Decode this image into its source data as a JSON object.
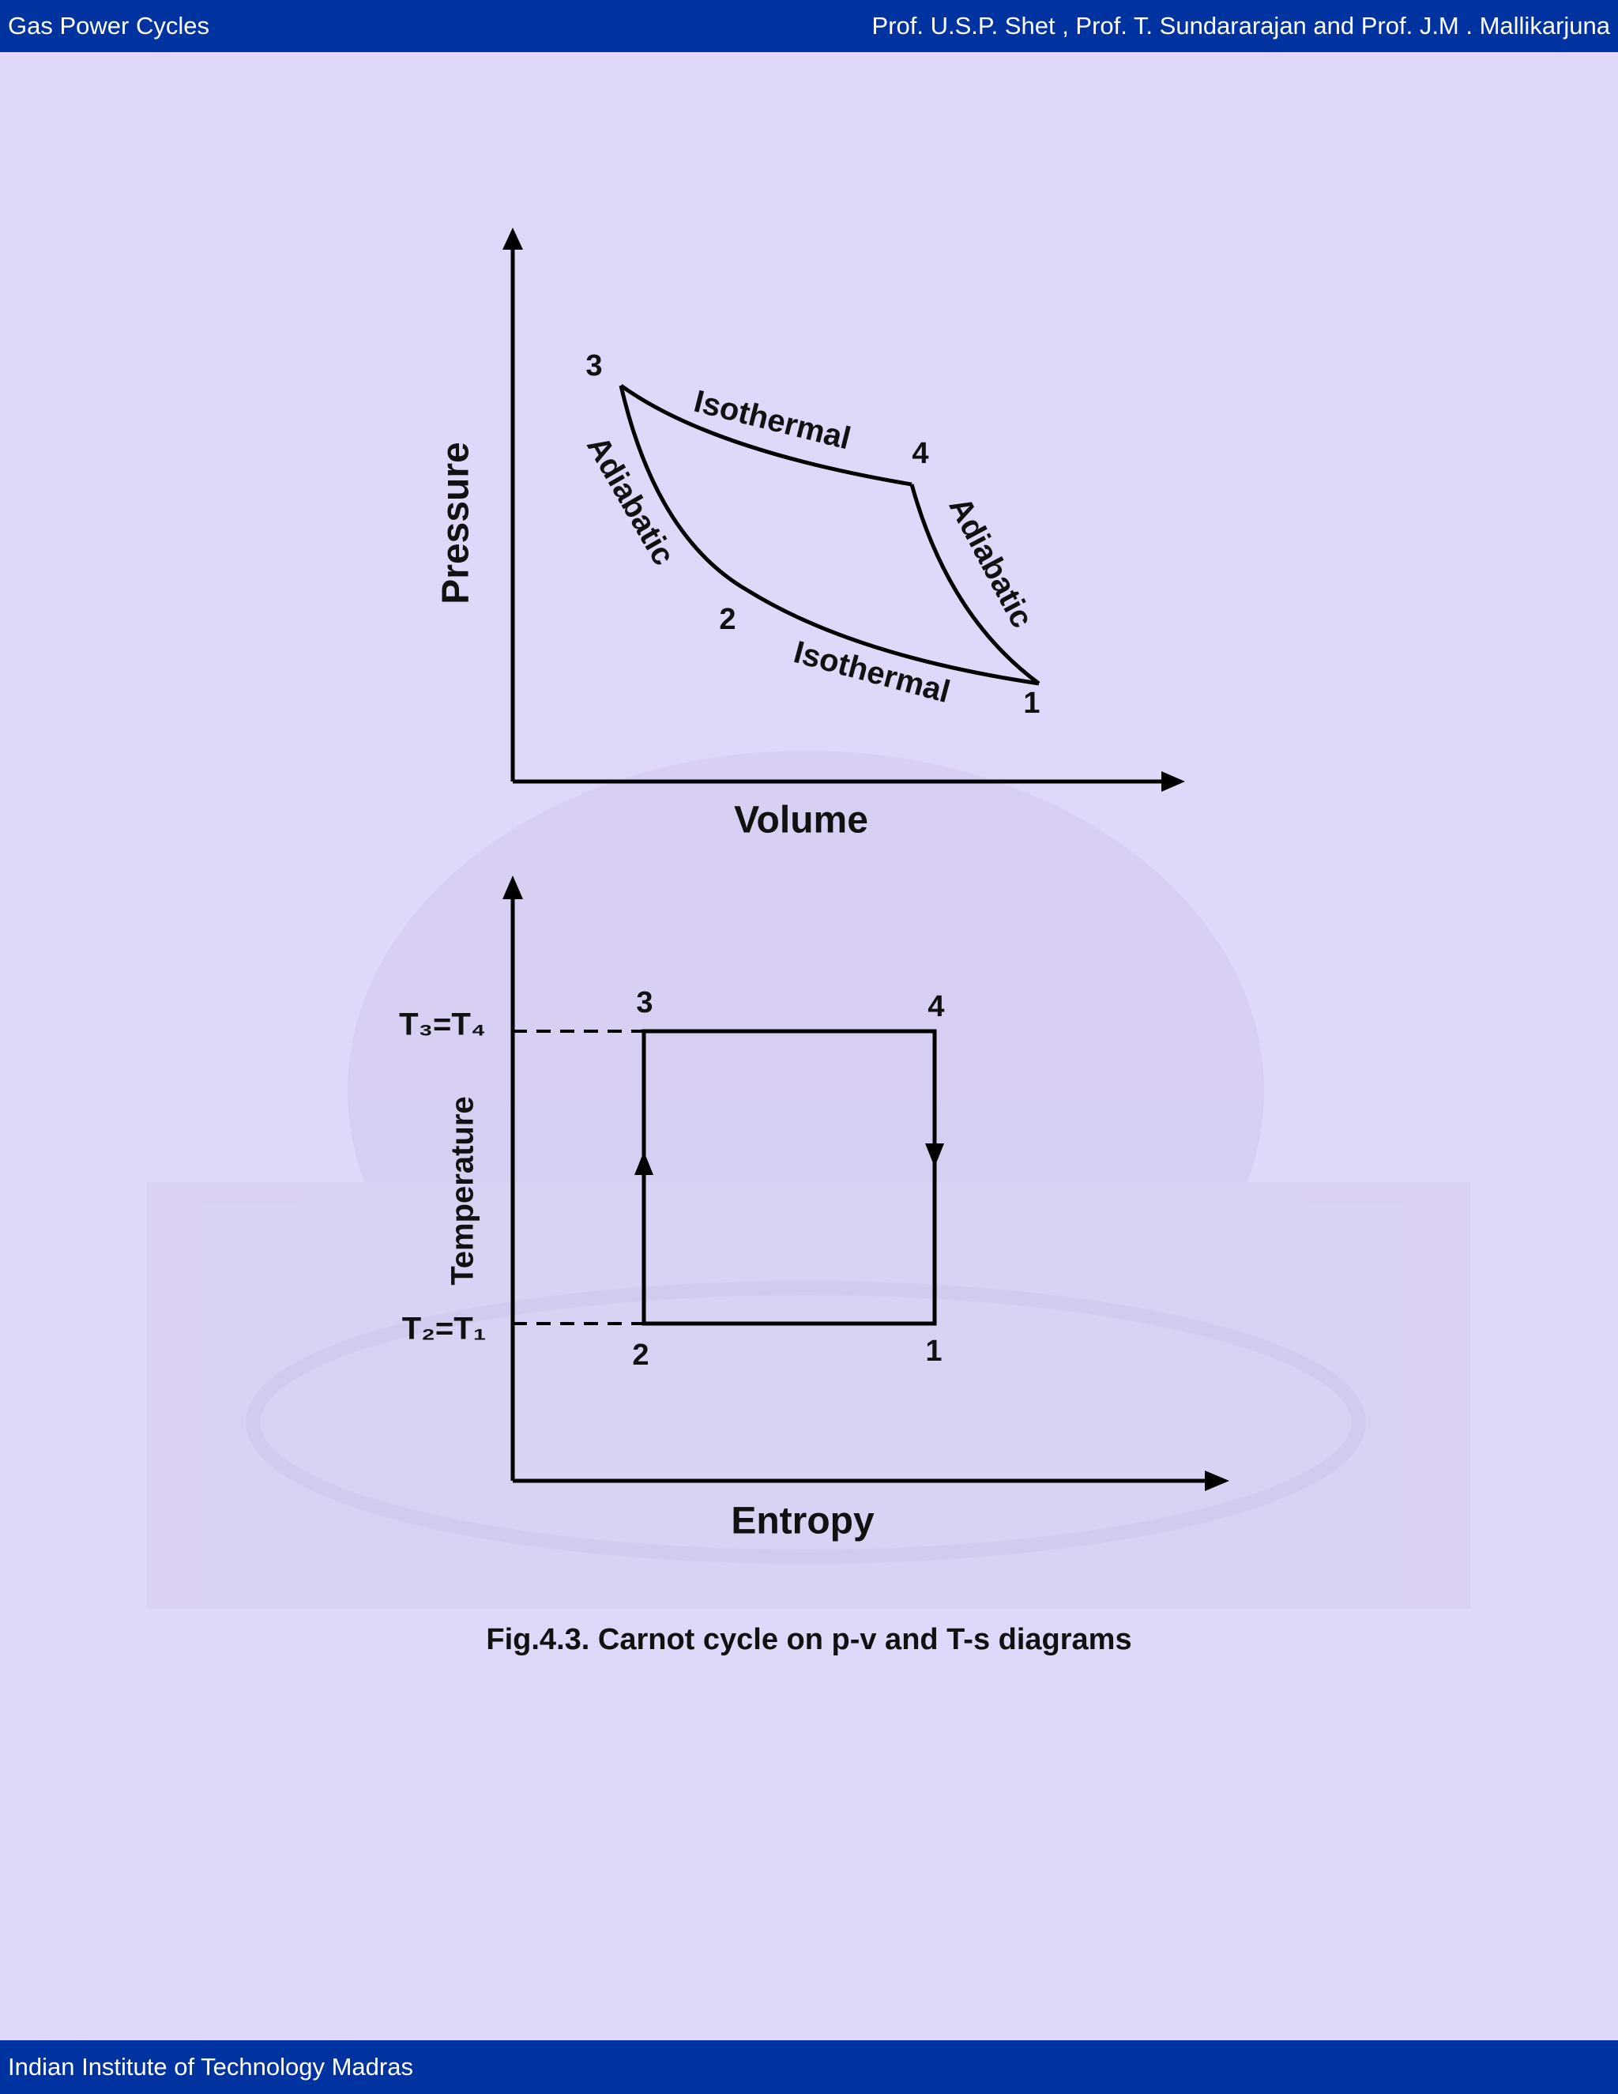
{
  "header": {
    "title": "Gas Power Cycles",
    "authors": "Prof. U.S.P. Shet , Prof. T. Sundararajan and Prof. J.M . Mallikarjuna"
  },
  "footer": {
    "institution": "Indian Institute of Technology Madras"
  },
  "pv_diagram": {
    "y_axis": "Pressure",
    "x_axis": "Volume",
    "points": [
      "3",
      "4",
      "1",
      "2"
    ],
    "processes": [
      "Isothermal",
      "Adiabatic",
      "Isothermal",
      "Adiabatic"
    ]
  },
  "ts_diagram": {
    "y_axis": "Temperature",
    "x_axis": "Entropy",
    "levels": [
      "T₃=T₄",
      "T₂=T₁"
    ],
    "points": [
      "3",
      "4",
      "1",
      "2"
    ]
  },
  "caption": "Fig.4.3. Carnot cycle on p-v and T-s diagrams"
}
